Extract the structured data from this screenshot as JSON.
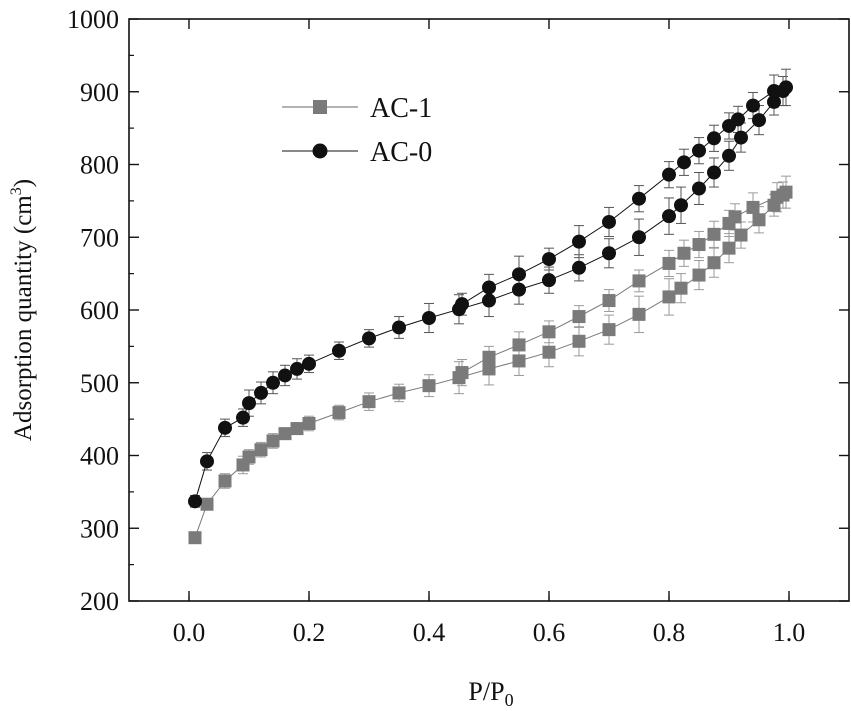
{
  "chart_data": {
    "type": "scatter",
    "title": "",
    "xlabel": "P/P",
    "xlabel_sub": "0",
    "ylabel": "Adsorption quantity (cm",
    "ylabel_sup": "3",
    "ylabel_close": ")",
    "xlim": [
      -0.1,
      1.1
    ],
    "ylim": [
      200,
      1000
    ],
    "xticks": [
      0.0,
      0.2,
      0.4,
      0.6,
      0.8,
      1.0
    ],
    "xtick_labels": [
      "0.0",
      "0.2",
      "0.4",
      "0.6",
      "0.8",
      "1.0"
    ],
    "yticks": [
      200,
      300,
      400,
      500,
      600,
      700,
      800,
      900,
      1000
    ],
    "ytick_labels": [
      "200",
      "300",
      "400",
      "500",
      "600",
      "700",
      "800",
      "900",
      "1000"
    ],
    "legend_position": "top-left",
    "series": [
      {
        "name": "AC-1",
        "marker": "square",
        "color": "#7a7a7a",
        "error_color": "#9a9a9a",
        "adsorption": [
          {
            "x": 0.01,
            "y": 287,
            "e": 5
          },
          {
            "x": 0.03,
            "y": 333,
            "e": 6
          },
          {
            "x": 0.06,
            "y": 365,
            "e": 10
          },
          {
            "x": 0.09,
            "y": 387,
            "e": 12
          },
          {
            "x": 0.1,
            "y": 398,
            "e": 10
          },
          {
            "x": 0.12,
            "y": 408,
            "e": 10
          },
          {
            "x": 0.14,
            "y": 420,
            "e": 10
          },
          {
            "x": 0.16,
            "y": 430,
            "e": 8
          },
          {
            "x": 0.18,
            "y": 437,
            "e": 8
          },
          {
            "x": 0.2,
            "y": 444,
            "e": 10
          },
          {
            "x": 0.25,
            "y": 459,
            "e": 10
          },
          {
            "x": 0.3,
            "y": 474,
            "e": 12
          },
          {
            "x": 0.35,
            "y": 486,
            "e": 12
          },
          {
            "x": 0.4,
            "y": 496,
            "e": 15
          },
          {
            "x": 0.45,
            "y": 507,
            "e": 22
          },
          {
            "x": 0.5,
            "y": 519,
            "e": 22
          },
          {
            "x": 0.55,
            "y": 530,
            "e": 20
          },
          {
            "x": 0.6,
            "y": 542,
            "e": 20
          },
          {
            "x": 0.65,
            "y": 557,
            "e": 20
          },
          {
            "x": 0.7,
            "y": 573,
            "e": 20
          },
          {
            "x": 0.75,
            "y": 594,
            "e": 25
          },
          {
            "x": 0.8,
            "y": 618,
            "e": 25
          },
          {
            "x": 0.82,
            "y": 630,
            "e": 20
          },
          {
            "x": 0.85,
            "y": 648,
            "e": 20
          },
          {
            "x": 0.875,
            "y": 665,
            "e": 20
          },
          {
            "x": 0.9,
            "y": 685,
            "e": 20
          },
          {
            "x": 0.92,
            "y": 703,
            "e": 18
          },
          {
            "x": 0.95,
            "y": 724,
            "e": 18
          },
          {
            "x": 0.975,
            "y": 744,
            "e": 15
          },
          {
            "x": 0.99,
            "y": 758,
            "e": 18
          }
        ],
        "desorption": [
          {
            "x": 0.995,
            "y": 762,
            "e": 22
          },
          {
            "x": 0.98,
            "y": 755,
            "e": 20
          },
          {
            "x": 0.94,
            "y": 741,
            "e": 20
          },
          {
            "x": 0.91,
            "y": 728,
            "e": 18
          },
          {
            "x": 0.9,
            "y": 719,
            "e": 18
          },
          {
            "x": 0.875,
            "y": 704,
            "e": 18
          },
          {
            "x": 0.85,
            "y": 690,
            "e": 18
          },
          {
            "x": 0.825,
            "y": 678,
            "e": 18
          },
          {
            "x": 0.8,
            "y": 664,
            "e": 18
          },
          {
            "x": 0.75,
            "y": 640,
            "e": 15
          },
          {
            "x": 0.7,
            "y": 613,
            "e": 15
          },
          {
            "x": 0.65,
            "y": 591,
            "e": 15
          },
          {
            "x": 0.6,
            "y": 570,
            "e": 15
          },
          {
            "x": 0.55,
            "y": 552,
            "e": 18
          },
          {
            "x": 0.5,
            "y": 535,
            "e": 15
          },
          {
            "x": 0.455,
            "y": 514,
            "e": 18
          }
        ]
      },
      {
        "name": "AC-0",
        "marker": "circle",
        "color": "#111111",
        "error_color": "#555555",
        "adsorption": [
          {
            "x": 0.01,
            "y": 337,
            "e": 8
          },
          {
            "x": 0.03,
            "y": 392,
            "e": 12
          },
          {
            "x": 0.06,
            "y": 438,
            "e": 12
          },
          {
            "x": 0.09,
            "y": 452,
            "e": 12
          },
          {
            "x": 0.1,
            "y": 472,
            "e": 18
          },
          {
            "x": 0.12,
            "y": 486,
            "e": 15
          },
          {
            "x": 0.14,
            "y": 500,
            "e": 15
          },
          {
            "x": 0.16,
            "y": 510,
            "e": 14
          },
          {
            "x": 0.18,
            "y": 519,
            "e": 14
          },
          {
            "x": 0.2,
            "y": 526,
            "e": 12
          },
          {
            "x": 0.25,
            "y": 544,
            "e": 12
          },
          {
            "x": 0.3,
            "y": 561,
            "e": 12
          },
          {
            "x": 0.35,
            "y": 576,
            "e": 15
          },
          {
            "x": 0.4,
            "y": 589,
            "e": 20
          },
          {
            "x": 0.45,
            "y": 601,
            "e": 20
          },
          {
            "x": 0.5,
            "y": 613,
            "e": 22
          },
          {
            "x": 0.55,
            "y": 628,
            "e": 20
          },
          {
            "x": 0.6,
            "y": 641,
            "e": 18
          },
          {
            "x": 0.65,
            "y": 658,
            "e": 18
          },
          {
            "x": 0.7,
            "y": 678,
            "e": 20
          },
          {
            "x": 0.75,
            "y": 700,
            "e": 25
          },
          {
            "x": 0.8,
            "y": 729,
            "e": 25
          },
          {
            "x": 0.82,
            "y": 744,
            "e": 25
          },
          {
            "x": 0.85,
            "y": 767,
            "e": 22
          },
          {
            "x": 0.875,
            "y": 789,
            "e": 20
          },
          {
            "x": 0.9,
            "y": 812,
            "e": 20
          },
          {
            "x": 0.92,
            "y": 837,
            "e": 20
          },
          {
            "x": 0.95,
            "y": 861,
            "e": 20
          },
          {
            "x": 0.975,
            "y": 886,
            "e": 18
          },
          {
            "x": 0.99,
            "y": 901,
            "e": 20
          }
        ],
        "desorption": [
          {
            "x": 0.995,
            "y": 906,
            "e": 25
          },
          {
            "x": 0.975,
            "y": 901,
            "e": 22
          },
          {
            "x": 0.94,
            "y": 881,
            "e": 18
          },
          {
            "x": 0.915,
            "y": 862,
            "e": 18
          },
          {
            "x": 0.9,
            "y": 853,
            "e": 18
          },
          {
            "x": 0.875,
            "y": 836,
            "e": 18
          },
          {
            "x": 0.85,
            "y": 819,
            "e": 18
          },
          {
            "x": 0.825,
            "y": 803,
            "e": 18
          },
          {
            "x": 0.8,
            "y": 786,
            "e": 18
          },
          {
            "x": 0.75,
            "y": 753,
            "e": 18
          },
          {
            "x": 0.7,
            "y": 721,
            "e": 20
          },
          {
            "x": 0.65,
            "y": 694,
            "e": 22
          },
          {
            "x": 0.6,
            "y": 670,
            "e": 15
          },
          {
            "x": 0.55,
            "y": 649,
            "e": 25
          },
          {
            "x": 0.5,
            "y": 631,
            "e": 18
          },
          {
            "x": 0.455,
            "y": 608,
            "e": 15
          }
        ]
      }
    ]
  }
}
